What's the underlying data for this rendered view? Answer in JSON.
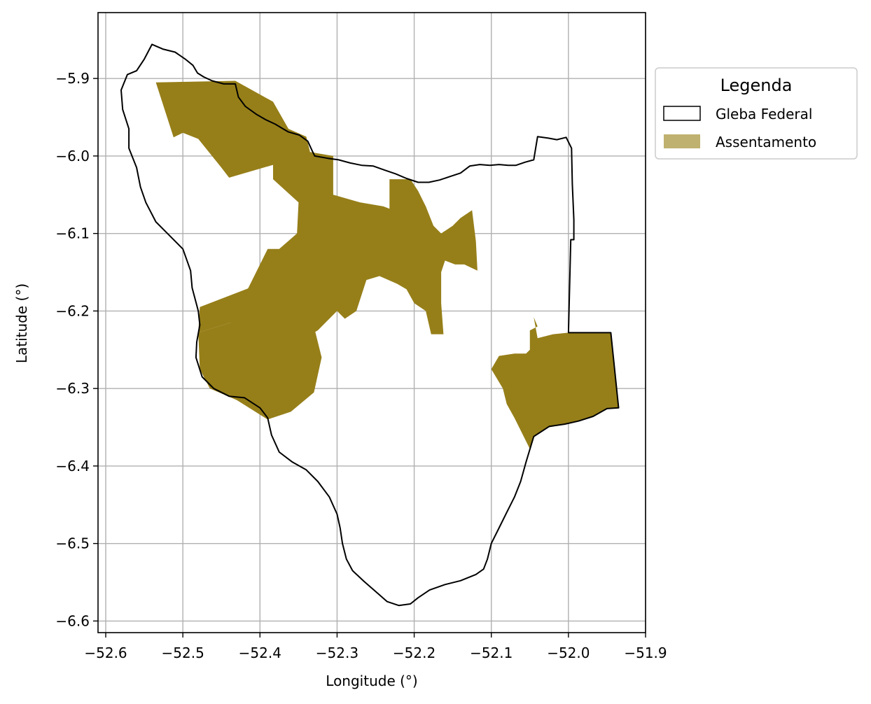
{
  "map": {
    "xlabel": "Longitude (°)",
    "ylabel": "Latitude (°)",
    "x_ticks": [
      {
        "value": -52.6,
        "label": "−52.6"
      },
      {
        "value": -52.5,
        "label": "−52.5"
      },
      {
        "value": -52.4,
        "label": "−52.4"
      },
      {
        "value": -52.3,
        "label": "−52.3"
      },
      {
        "value": -52.2,
        "label": "−52.2"
      },
      {
        "value": -52.1,
        "label": "−52.1"
      },
      {
        "value": -52.0,
        "label": "−52.0"
      },
      {
        "value": -51.9,
        "label": "−51.9"
      }
    ],
    "y_ticks": [
      {
        "value": -5.9,
        "label": "−5.9"
      },
      {
        "value": -6.0,
        "label": "−6.0"
      },
      {
        "value": -6.1,
        "label": "−6.1"
      },
      {
        "value": -6.2,
        "label": "−6.2"
      },
      {
        "value": -6.3,
        "label": "−6.3"
      },
      {
        "value": -6.4,
        "label": "−6.4"
      },
      {
        "value": -6.5,
        "label": "−6.5"
      },
      {
        "value": -6.6,
        "label": "−6.6"
      }
    ],
    "xlim": [
      -52.61,
      -51.9
    ],
    "ylim": [
      -6.615,
      -5.815
    ],
    "grid": true,
    "legend": {
      "title": "Legenda",
      "placement": "outside-right-top",
      "entries": [
        {
          "label": "Gleba Federal",
          "style": "outline",
          "color": "#000000"
        },
        {
          "label": "Assentamento",
          "style": "fill",
          "color": "#967f19"
        }
      ]
    },
    "colors": {
      "gleba_outline": "#000000",
      "assentamento_fill": "#967f19",
      "legend_patch": "#bfb16f"
    },
    "gleba_federal": [
      [
        -52.54,
        -5.856
      ],
      [
        -52.526,
        -5.862
      ],
      [
        -52.51,
        -5.866
      ],
      [
        -52.497,
        -5.875
      ],
      [
        -52.487,
        -5.883
      ],
      [
        -52.481,
        -5.893
      ],
      [
        -52.473,
        -5.898
      ],
      [
        -52.462,
        -5.903
      ],
      [
        -52.447,
        -5.907
      ],
      [
        -52.432,
        -5.907
      ],
      [
        -52.428,
        -5.924
      ],
      [
        -52.419,
        -5.936
      ],
      [
        -52.405,
        -5.946
      ],
      [
        -52.393,
        -5.953
      ],
      [
        -52.38,
        -5.959
      ],
      [
        -52.37,
        -5.965
      ],
      [
        -52.363,
        -5.969
      ],
      [
        -52.349,
        -5.973
      ],
      [
        -52.338,
        -5.981
      ],
      [
        -52.332,
        -5.994
      ],
      [
        -52.329,
        -6.0
      ],
      [
        -52.312,
        -6.003
      ],
      [
        -52.298,
        -6.005
      ],
      [
        -52.283,
        -6.009
      ],
      [
        -52.268,
        -6.012
      ],
      [
        -52.253,
        -6.013
      ],
      [
        -52.239,
        -6.018
      ],
      [
        -52.224,
        -6.023
      ],
      [
        -52.21,
        -6.029
      ],
      [
        -52.195,
        -6.034
      ],
      [
        -52.181,
        -6.034
      ],
      [
        -52.167,
        -6.031
      ],
      [
        -52.152,
        -6.026
      ],
      [
        -52.14,
        -6.022
      ],
      [
        -52.128,
        -6.013
      ],
      [
        -52.115,
        -6.011
      ],
      [
        -52.102,
        -6.012
      ],
      [
        -52.09,
        -6.011
      ],
      [
        -52.078,
        -6.012
      ],
      [
        -52.068,
        -6.012
      ],
      [
        -52.056,
        -6.008
      ],
      [
        -52.045,
        -6.005
      ],
      [
        -52.04,
        -5.975
      ],
      [
        -52.026,
        -5.977
      ],
      [
        -52.015,
        -5.979
      ],
      [
        -52.003,
        -5.976
      ],
      [
        -51.996,
        -5.99
      ],
      [
        -51.995,
        -6.036
      ],
      [
        -51.993,
        -6.082
      ],
      [
        -51.993,
        -6.108
      ],
      [
        -51.997,
        -6.108
      ],
      [
        -52.0,
        -6.228
      ],
      [
        -51.945,
        -6.228
      ],
      [
        -51.935,
        -6.325
      ],
      [
        -51.95,
        -6.326
      ],
      [
        -51.968,
        -6.336
      ],
      [
        -51.987,
        -6.342
      ],
      [
        -52.005,
        -6.346
      ],
      [
        -52.025,
        -6.349
      ],
      [
        -52.045,
        -6.362
      ],
      [
        -52.055,
        -6.395
      ],
      [
        -52.062,
        -6.42
      ],
      [
        -52.07,
        -6.44
      ],
      [
        -52.08,
        -6.46
      ],
      [
        -52.09,
        -6.48
      ],
      [
        -52.1,
        -6.5
      ],
      [
        -52.105,
        -6.52
      ],
      [
        -52.11,
        -6.533
      ],
      [
        -52.12,
        -6.54
      ],
      [
        -52.14,
        -6.548
      ],
      [
        -52.16,
        -6.553
      ],
      [
        -52.18,
        -6.56
      ],
      [
        -52.195,
        -6.57
      ],
      [
        -52.205,
        -6.578
      ],
      [
        -52.22,
        -6.58
      ],
      [
        -52.235,
        -6.575
      ],
      [
        -52.25,
        -6.562
      ],
      [
        -52.265,
        -6.549
      ],
      [
        -52.28,
        -6.535
      ],
      [
        -52.288,
        -6.52
      ],
      [
        -52.293,
        -6.5
      ],
      [
        -52.296,
        -6.48
      ],
      [
        -52.3,
        -6.462
      ],
      [
        -52.31,
        -6.44
      ],
      [
        -52.325,
        -6.42
      ],
      [
        -52.34,
        -6.405
      ],
      [
        -52.358,
        -6.395
      ],
      [
        -52.375,
        -6.382
      ],
      [
        -52.385,
        -6.36
      ],
      [
        -52.39,
        -6.338
      ],
      [
        -52.4,
        -6.325
      ],
      [
        -52.42,
        -6.312
      ],
      [
        -52.44,
        -6.31
      ],
      [
        -52.46,
        -6.3
      ],
      [
        -52.475,
        -6.285
      ],
      [
        -52.483,
        -6.26
      ],
      [
        -52.482,
        -6.24
      ],
      [
        -52.478,
        -6.218
      ],
      [
        -52.48,
        -6.2
      ],
      [
        -52.488,
        -6.17
      ],
      [
        -52.49,
        -6.148
      ],
      [
        -52.5,
        -6.12
      ],
      [
        -52.52,
        -6.1
      ],
      [
        -52.535,
        -6.085
      ],
      [
        -52.548,
        -6.06
      ],
      [
        -52.555,
        -6.04
      ],
      [
        -52.56,
        -6.015
      ],
      [
        -52.57,
        -5.99
      ],
      [
        -52.57,
        -5.965
      ],
      [
        -52.578,
        -5.94
      ],
      [
        -52.58,
        -5.915
      ],
      [
        -52.572,
        -5.895
      ],
      [
        -52.56,
        -5.89
      ],
      [
        -52.55,
        -5.875
      ],
      [
        -52.54,
        -5.856
      ]
    ],
    "assentamentos": [
      [
        [
          -52.535,
          -5.905
        ],
        [
          -52.432,
          -5.903
        ],
        [
          -52.383,
          -5.93
        ],
        [
          -52.378,
          -6.01
        ],
        [
          -52.44,
          -6.028
        ],
        [
          -52.45,
          -6.015
        ],
        [
          -52.48,
          -5.978
        ],
        [
          -52.5,
          -5.97
        ],
        [
          -52.512,
          -5.976
        ]
      ],
      [
        [
          -52.383,
          -5.93
        ],
        [
          -52.363,
          -5.965
        ],
        [
          -52.34,
          -5.975
        ],
        [
          -52.335,
          -5.995
        ],
        [
          -52.305,
          -6.0
        ],
        [
          -52.305,
          -6.05
        ],
        [
          -52.27,
          -6.06
        ],
        [
          -52.24,
          -6.065
        ],
        [
          -52.232,
          -6.068
        ],
        [
          -52.232,
          -6.03
        ],
        [
          -52.205,
          -6.03
        ],
        [
          -52.195,
          -6.045
        ],
        [
          -52.185,
          -6.065
        ],
        [
          -52.175,
          -6.09
        ],
        [
          -52.165,
          -6.1
        ],
        [
          -52.15,
          -6.09
        ],
        [
          -52.14,
          -6.08
        ],
        [
          -52.125,
          -6.07
        ],
        [
          -52.12,
          -6.11
        ],
        [
          -52.118,
          -6.148
        ],
        [
          -52.135,
          -6.14
        ],
        [
          -52.147,
          -6.14
        ],
        [
          -52.16,
          -6.135
        ],
        [
          -52.165,
          -6.15
        ],
        [
          -52.165,
          -6.19
        ],
        [
          -52.162,
          -6.23
        ],
        [
          -52.178,
          -6.23
        ],
        [
          -52.185,
          -6.2
        ],
        [
          -52.2,
          -6.19
        ],
        [
          -52.21,
          -6.172
        ],
        [
          -52.222,
          -6.165
        ],
        [
          -52.245,
          -6.155
        ],
        [
          -52.262,
          -6.16
        ],
        [
          -52.275,
          -6.2
        ],
        [
          -52.29,
          -6.21
        ],
        [
          -52.3,
          -6.2
        ],
        [
          -52.315,
          -6.215
        ],
        [
          -52.325,
          -6.225
        ],
        [
          -52.36,
          -6.245
        ],
        [
          -52.395,
          -6.255
        ],
        [
          -52.41,
          -6.21
        ],
        [
          -52.42,
          -6.18
        ],
        [
          -52.39,
          -6.12
        ],
        [
          -52.375,
          -6.12
        ],
        [
          -52.352,
          -6.1
        ],
        [
          -52.35,
          -6.06
        ],
        [
          -52.383,
          -6.03
        ]
      ],
      [
        [
          -52.478,
          -6.195
        ],
        [
          -52.48,
          -6.228
        ],
        [
          -52.438,
          -6.215
        ],
        [
          -52.4,
          -6.215
        ],
        [
          -52.4,
          -6.165
        ]
      ],
      [
        [
          -52.48,
          -6.228
        ],
        [
          -52.478,
          -6.275
        ],
        [
          -52.465,
          -6.3
        ],
        [
          -52.43,
          -6.315
        ],
        [
          -52.39,
          -6.34
        ],
        [
          -52.36,
          -6.33
        ],
        [
          -52.33,
          -6.305
        ],
        [
          -52.32,
          -6.26
        ],
        [
          -52.33,
          -6.22
        ],
        [
          -52.36,
          -6.2
        ],
        [
          -52.4,
          -6.215
        ],
        [
          -52.438,
          -6.215
        ]
      ],
      [
        [
          -52.045,
          -6.208
        ],
        [
          -52.04,
          -6.22
        ],
        [
          -52.05,
          -6.225
        ],
        [
          -52.05,
          -6.25
        ],
        [
          -52.055,
          -6.255
        ],
        [
          -52.07,
          -6.255
        ],
        [
          -52.09,
          -6.258
        ],
        [
          -52.1,
          -6.275
        ],
        [
          -52.085,
          -6.3
        ],
        [
          -52.08,
          -6.32
        ],
        [
          -52.07,
          -6.338
        ],
        [
          -52.05,
          -6.378
        ],
        [
          -52.045,
          -6.362
        ],
        [
          -52.025,
          -6.35
        ],
        [
          -52.005,
          -6.346
        ],
        [
          -51.985,
          -6.342
        ],
        [
          -51.968,
          -6.336
        ],
        [
          -51.95,
          -6.326
        ],
        [
          -51.935,
          -6.325
        ],
        [
          -51.945,
          -6.228
        ],
        [
          -52.0,
          -6.228
        ],
        [
          -52.02,
          -6.23
        ],
        [
          -52.04,
          -6.235
        ]
      ]
    ]
  }
}
